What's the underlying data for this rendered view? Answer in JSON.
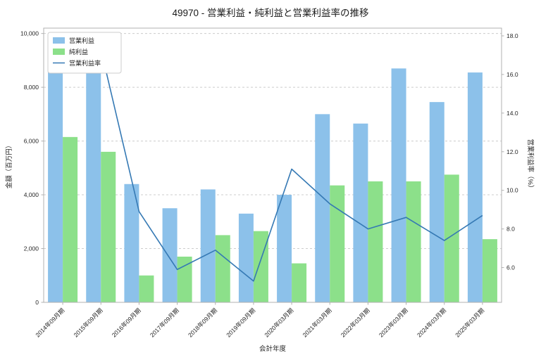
{
  "chart_data": {
    "type": "bar+line",
    "title": "49970 - 営業利益・純利益と営業利益率の推移",
    "xlabel": "会計年度",
    "ylabel_left": "金額（百万円）",
    "ylabel_right": "営業利益率（%）",
    "categories": [
      "2014年09月期",
      "2015年09月期",
      "2016年09月期",
      "2017年09月期",
      "2018年09月期",
      "2019年09月期",
      "2020年03月期",
      "2021年03月期",
      "2022年03月期",
      "2023年03月期",
      "2024年03月期",
      "2025年03月期"
    ],
    "series": [
      {
        "key": "operating-profit",
        "name": "営業利益",
        "type": "bar",
        "axis": "left",
        "color": "#8cc1ea",
        "values": [
          9300,
          10000,
          4400,
          3500,
          4200,
          3300,
          4000,
          7000,
          6650,
          8700,
          7450,
          8550
        ]
      },
      {
        "key": "net-profit",
        "name": "純利益",
        "type": "bar",
        "axis": "left",
        "color": "#8ce08a",
        "values": [
          6150,
          5600,
          1000,
          1700,
          2500,
          2650,
          1450,
          4350,
          4500,
          4500,
          4750,
          2350
        ]
      },
      {
        "key": "operating-margin",
        "name": "営業利益率",
        "type": "line",
        "axis": "right",
        "color": "#3579b4",
        "values": [
          16.5,
          17.3,
          8.9,
          5.9,
          6.9,
          5.3,
          11.1,
          9.3,
          8.0,
          8.6,
          7.4,
          8.7
        ]
      }
    ],
    "ylim_left": [
      0,
      10200
    ],
    "ylim_right": [
      4.2,
      18.4
    ],
    "yticks_left": [
      0,
      2000,
      4000,
      6000,
      8000,
      10000
    ],
    "ytick_labels_left": [
      "0",
      "2,000",
      "4,000",
      "6,000",
      "8,000",
      "10,000"
    ],
    "yticks_right": [
      6,
      8,
      10,
      12,
      14,
      16,
      18
    ],
    "ytick_labels_right": [
      "6.0",
      "8.0",
      "10.0",
      "12.0",
      "14.0",
      "16.0",
      "18.0"
    ],
    "grid": "horizontal-dashed",
    "grid_color": "#cccccc",
    "spine_color": "#b0b0b0",
    "legend_position": "top-left"
  }
}
